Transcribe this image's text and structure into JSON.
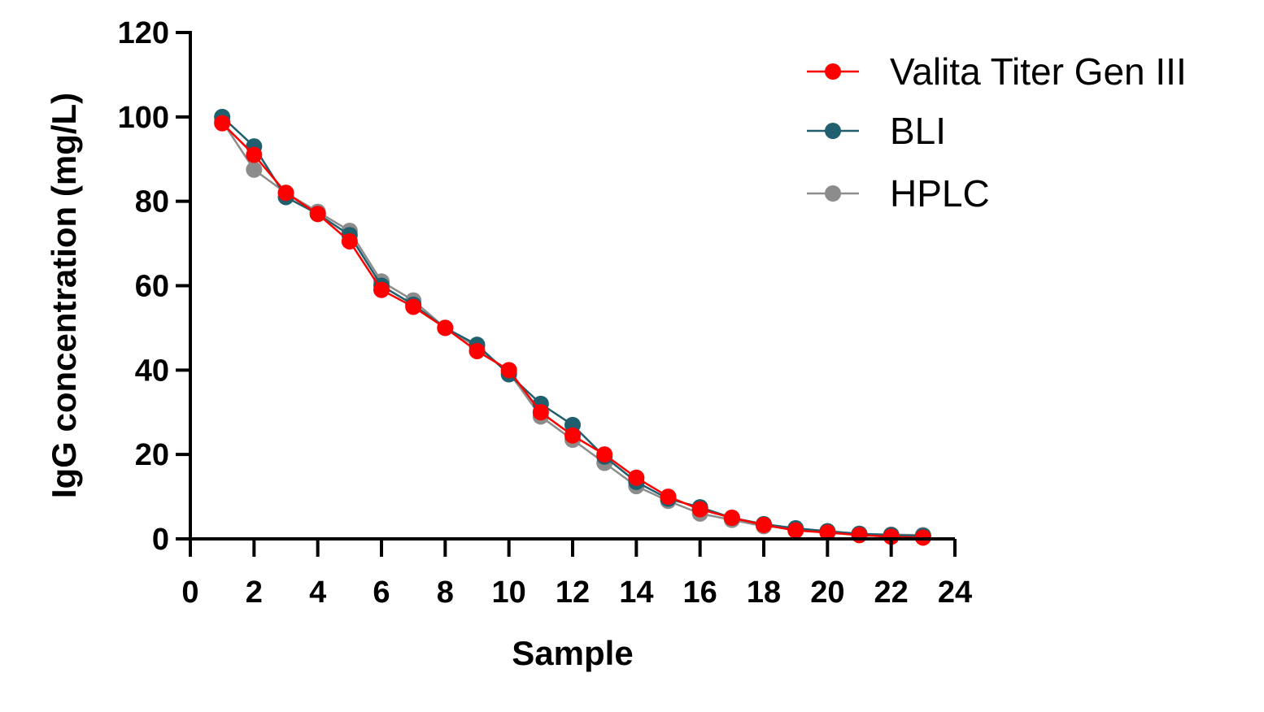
{
  "chart_data": {
    "type": "line",
    "title": "",
    "xlabel": "Sample",
    "ylabel": "IgG concentration (mg/L)",
    "xlim": [
      0,
      24
    ],
    "ylim": [
      0,
      120
    ],
    "xticks": [
      0,
      2,
      4,
      6,
      8,
      10,
      12,
      14,
      16,
      18,
      20,
      22,
      24
    ],
    "yticks": [
      0,
      20,
      40,
      60,
      80,
      100,
      120
    ],
    "grid": false,
    "legend": "top-right",
    "x": [
      1,
      2,
      3,
      4,
      5,
      6,
      7,
      8,
      9,
      10,
      11,
      12,
      13,
      14,
      15,
      16,
      17,
      18,
      19,
      20,
      21,
      22,
      23
    ],
    "series": [
      {
        "name": "HPLC",
        "color": "#8c8c8c",
        "values": [
          99,
          87.5,
          82,
          77.5,
          73,
          61,
          56.5,
          50,
          45.5,
          39.5,
          29,
          23.5,
          18,
          12.5,
          9,
          6,
          4.5,
          3,
          2.5,
          1.8,
          1.2,
          1.0,
          0.9
        ]
      },
      {
        "name": "BLI",
        "color": "#1f5f6e",
        "values": [
          100,
          93,
          81,
          77,
          72,
          60,
          55.5,
          50,
          46,
          39,
          32,
          27,
          19.5,
          13.5,
          9.5,
          7.5,
          5,
          3.5,
          2.5,
          1.8,
          1.2,
          0.9,
          0.7
        ]
      },
      {
        "name": "Valita Titer Gen III",
        "color": "#ff0000",
        "values": [
          98.5,
          91,
          82,
          77,
          70.5,
          59,
          55,
          50,
          44.5,
          40,
          30,
          24.5,
          20,
          14.5,
          10,
          7,
          5,
          3.3,
          2,
          1.5,
          0.9,
          0.5,
          0.3
        ]
      }
    ],
    "legend_entries": [
      "Valita Titer Gen III",
      "BLI",
      "HPLC"
    ]
  }
}
